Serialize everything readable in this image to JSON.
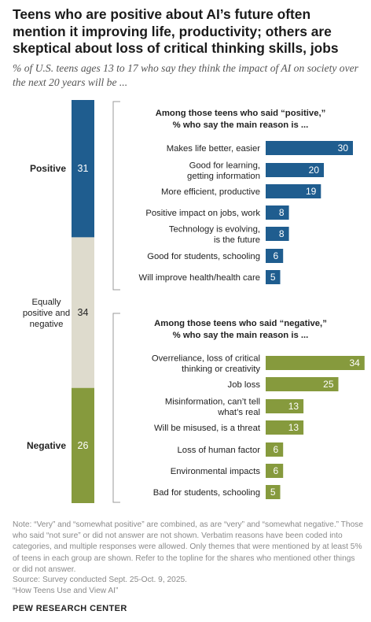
{
  "title": "Teens who are positive about AI’s future often mention it improving life, productivity; others are skeptical about loss of critical thinking skills, jobs",
  "subtitle": "% of U.S. teens ages 13 to 17 who say they think the impact of AI on society over the next 20 years will be ...",
  "colors": {
    "positive": "#1f5d8f",
    "neutral": "#dedbcd",
    "negative": "#869a3d"
  },
  "chart_data": [
    {
      "type": "bar",
      "orientation": "vertical-stacked",
      "categories": [
        "Positive",
        "Equally positive and negative",
        "Negative"
      ],
      "values": [
        31,
        34,
        26
      ]
    },
    {
      "type": "bar",
      "orientation": "horizontal",
      "title": "Among those teens who said “positive,” % who say the main reason is ...",
      "categories": [
        "Makes life better, easier",
        "Good for learning, getting information",
        "More efficient, productive",
        "Positive impact on jobs, work",
        "Technology is evolving, is the future",
        "Good for students, schooling",
        "Will improve health/health care"
      ],
      "values": [
        30,
        20,
        19,
        8,
        8,
        6,
        5
      ]
    },
    {
      "type": "bar",
      "orientation": "horizontal",
      "title": "Among those teens who said “negative,” % who say the main reason is ...",
      "categories": [
        "Overreliance, loss of critical thinking or creativity",
        "Job loss",
        "Misinformation, can’t tell what’s real",
        "Will be misused, is a threat",
        "Loss of human factor",
        "Environmental impacts",
        "Bad for students, schooling"
      ],
      "values": [
        34,
        25,
        13,
        13,
        6,
        6,
        5
      ]
    }
  ],
  "note": "Note: “Very” and “somewhat positive” are combined, as are “very” and “somewhat negative.” Those who said “not sure” or did not answer are not shown. Verbatim reasons have been coded into categories, and multiple responses were allowed. Only themes that were mentioned by at least 5% of teens in each group are shown. Refer to the topline for the shares who mentioned other things or did not answer.",
  "source": "Source: Survey conducted Sept. 25-Oct. 9, 2025.",
  "report": "“How Teens Use and View AI”",
  "brand": "PEW RESEARCH CENTER"
}
